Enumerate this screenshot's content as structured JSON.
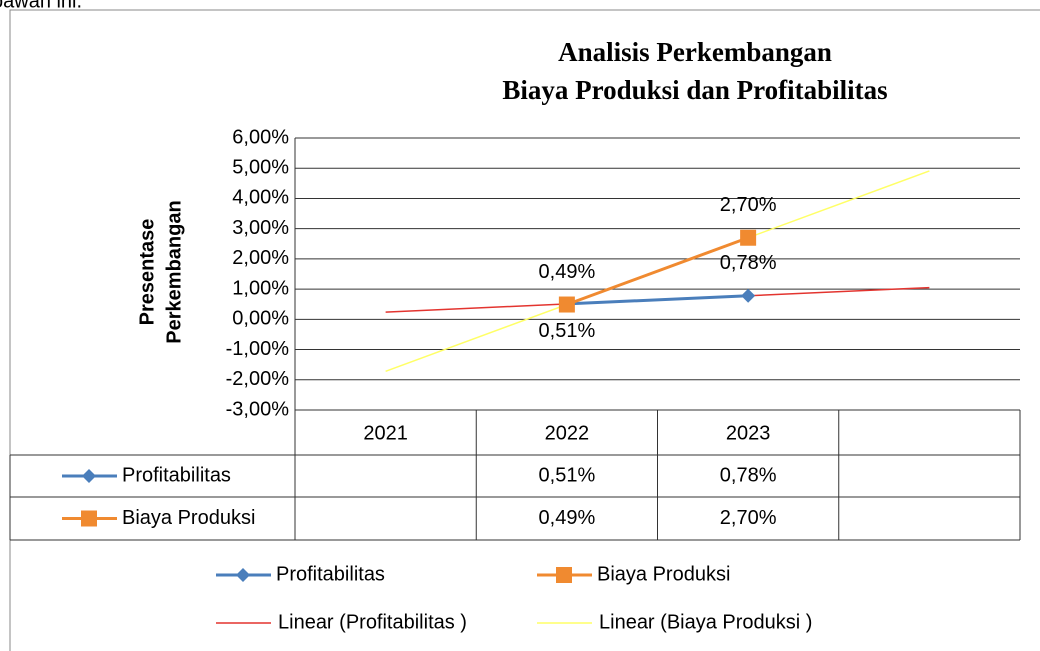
{
  "context_text": "bawah ini.",
  "chart_data": {
    "type": "line",
    "title": [
      "Analisis Perkembangan",
      "Biaya Produksi dan Profitabilitas"
    ],
    "ylabel": [
      "Presentase",
      "Perkembangan"
    ],
    "categories": [
      "2021",
      "2022",
      "2023",
      null
    ],
    "series": [
      {
        "name": "Profitabilitas",
        "color": "#4a7ebb",
        "marker": "diamond",
        "values": [
          null,
          0.51,
          0.78,
          null
        ],
        "value_labels": [
          null,
          "0,51%",
          "0,78%",
          null
        ]
      },
      {
        "name": "Biaya Produksi",
        "color": "#f08a30",
        "marker": "square",
        "values": [
          null,
          0.49,
          2.7,
          null
        ],
        "value_labels": [
          null,
          "0,49%",
          "2,70%",
          null
        ]
      }
    ],
    "trendlines": [
      {
        "name": "Linear (Profitabilitas )",
        "color": "#e3342f",
        "series": 0
      },
      {
        "name": "Linear (Biaya Produksi )",
        "color": "#ffff66",
        "series": 1
      }
    ],
    "ylim": [
      -3,
      6
    ],
    "yticks": [
      {
        "value": -3,
        "label": "-3,00%"
      },
      {
        "value": -2,
        "label": "-2,00%"
      },
      {
        "value": -1,
        "label": "-1,00%"
      },
      {
        "value": 0,
        "label": "0,00%"
      },
      {
        "value": 1,
        "label": "1,00%"
      },
      {
        "value": 2,
        "label": "2,00%"
      },
      {
        "value": 3,
        "label": "3,00%"
      },
      {
        "value": 4,
        "label": "4,00%"
      },
      {
        "value": 5,
        "label": "5,00%"
      },
      {
        "value": 6,
        "label": "6,00%"
      }
    ],
    "grid": true,
    "data_table": true
  }
}
